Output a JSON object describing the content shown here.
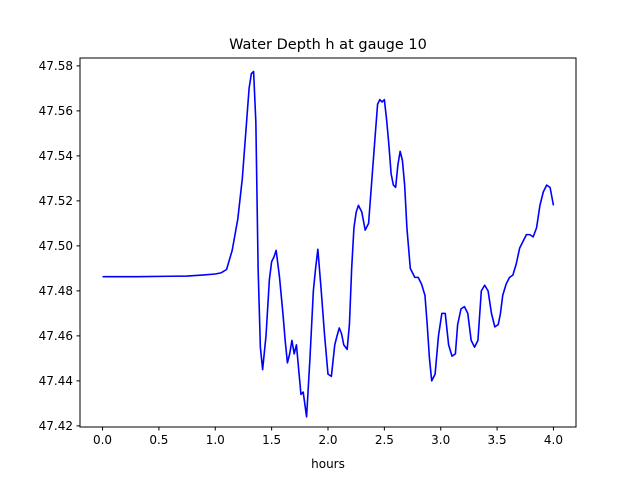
{
  "chart_data": {
    "type": "line",
    "title": "Water Depth h at gauge 10",
    "xlabel": "hours",
    "ylabel": "",
    "xlim": [
      -0.2,
      4.2
    ],
    "ylim": [
      47.4195,
      47.5835
    ],
    "x_ticks": [
      0.0,
      0.5,
      1.0,
      1.5,
      2.0,
      2.5,
      3.0,
      3.5,
      4.0
    ],
    "x_tick_labels": [
      "0.0",
      "0.5",
      "1.0",
      "1.5",
      "2.0",
      "2.5",
      "3.0",
      "3.5",
      "4.0"
    ],
    "y_ticks": [
      47.42,
      47.44,
      47.46,
      47.48,
      47.5,
      47.52,
      47.54,
      47.56,
      47.58
    ],
    "y_tick_labels": [
      "47.42",
      "47.44",
      "47.46",
      "47.48",
      "47.50",
      "47.52",
      "47.54",
      "47.56",
      "47.58"
    ],
    "grid": false,
    "series": [
      {
        "color": "#0000ff",
        "x": [
          0.0,
          0.3,
          0.6,
          0.75,
          0.9,
          1.0,
          1.05,
          1.1,
          1.15,
          1.2,
          1.24,
          1.27,
          1.3,
          1.32,
          1.34,
          1.36,
          1.38,
          1.4,
          1.42,
          1.45,
          1.48,
          1.5,
          1.52,
          1.54,
          1.57,
          1.6,
          1.62,
          1.64,
          1.66,
          1.68,
          1.7,
          1.72,
          1.74,
          1.76,
          1.78,
          1.81,
          1.84,
          1.87,
          1.89,
          1.91,
          1.94,
          1.97,
          2.0,
          2.03,
          2.06,
          2.08,
          2.1,
          2.12,
          2.14,
          2.17,
          2.19,
          2.21,
          2.23,
          2.25,
          2.27,
          2.3,
          2.33,
          2.36,
          2.39,
          2.42,
          2.44,
          2.46,
          2.48,
          2.5,
          2.52,
          2.54,
          2.56,
          2.58,
          2.6,
          2.62,
          2.64,
          2.66,
          2.68,
          2.7,
          2.73,
          2.77,
          2.8,
          2.83,
          2.86,
          2.88,
          2.9,
          2.92,
          2.95,
          2.98,
          3.01,
          3.04,
          3.07,
          3.1,
          3.13,
          3.15,
          3.18,
          3.21,
          3.24,
          3.27,
          3.3,
          3.33,
          3.36,
          3.39,
          3.42,
          3.45,
          3.48,
          3.51,
          3.53,
          3.55,
          3.58,
          3.61,
          3.64,
          3.67,
          3.7,
          3.73,
          3.76,
          3.79,
          3.82,
          3.85,
          3.88,
          3.91,
          3.94,
          3.97,
          4.0
        ],
        "y": [
          47.4863,
          47.4863,
          47.4865,
          47.4866,
          47.4871,
          47.4875,
          47.488,
          47.4895,
          47.498,
          47.512,
          47.53,
          47.55,
          47.57,
          47.5765,
          47.5775,
          47.555,
          47.49,
          47.455,
          47.445,
          47.46,
          47.485,
          47.493,
          47.495,
          47.498,
          47.486,
          47.47,
          47.458,
          47.448,
          47.452,
          47.458,
          47.452,
          47.456,
          47.445,
          47.434,
          47.435,
          47.424,
          47.45,
          47.48,
          47.49,
          47.4985,
          47.48,
          47.46,
          47.443,
          47.442,
          47.456,
          47.46,
          47.4635,
          47.461,
          47.456,
          47.454,
          47.465,
          47.49,
          47.508,
          47.515,
          47.518,
          47.515,
          47.507,
          47.51,
          47.53,
          47.55,
          47.563,
          47.565,
          47.564,
          47.565,
          47.556,
          47.545,
          47.532,
          47.527,
          47.526,
          47.536,
          47.542,
          47.538,
          47.527,
          47.508,
          47.49,
          47.486,
          47.486,
          47.483,
          47.478,
          47.465,
          47.45,
          47.44,
          47.443,
          47.46,
          47.47,
          47.47,
          47.456,
          47.451,
          47.452,
          47.465,
          47.472,
          47.473,
          47.47,
          47.458,
          47.455,
          47.458,
          47.48,
          47.4825,
          47.48,
          47.47,
          47.464,
          47.465,
          47.47,
          47.478,
          47.483,
          47.486,
          47.487,
          47.492,
          47.499,
          47.502,
          47.505,
          47.505,
          47.504,
          47.508,
          47.518,
          47.524,
          47.527,
          47.526,
          47.518
        ]
      }
    ]
  }
}
